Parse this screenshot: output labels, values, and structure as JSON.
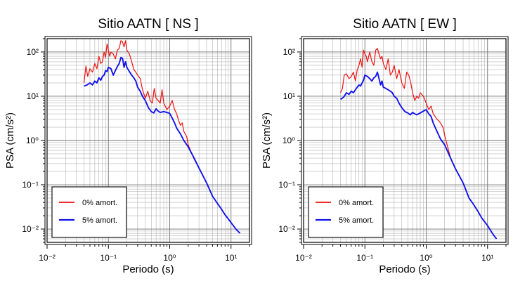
{
  "chart_data": [
    {
      "type": "line",
      "title": "Sitio AATN [ NS ]",
      "xlabel": "Periodo (s)",
      "ylabel": "PSA (cm/s²)",
      "xscale": "log",
      "yscale": "log",
      "xlim": [
        0.01,
        20
      ],
      "ylim": [
        0.005,
        200
      ],
      "grid": true,
      "legend_position": "bottom-left",
      "legend_label_fontsize": "small",
      "x_ticks": [
        "10⁻²",
        "10⁻¹",
        "10⁰",
        "10¹"
      ],
      "y_ticks": [
        "10⁻²",
        "10⁻¹",
        "10⁰",
        "10¹",
        "10²"
      ],
      "series": [
        {
          "name": "0% amort.",
          "color": "#ee1111",
          "x": [
            0.04,
            0.043,
            0.046,
            0.05,
            0.055,
            0.06,
            0.065,
            0.07,
            0.075,
            0.08,
            0.085,
            0.09,
            0.095,
            0.1,
            0.105,
            0.11,
            0.12,
            0.13,
            0.14,
            0.15,
            0.16,
            0.17,
            0.18,
            0.19,
            0.2,
            0.22,
            0.24,
            0.26,
            0.28,
            0.3,
            0.33,
            0.36,
            0.4,
            0.44,
            0.48,
            0.52,
            0.56,
            0.6,
            0.65,
            0.7,
            0.75,
            0.8,
            0.9,
            1.0,
            1.1,
            1.2,
            1.3,
            1.4,
            1.5,
            1.6,
            1.7,
            1.8,
            1.9,
            2.0,
            2.5,
            3,
            4,
            5,
            6,
            7,
            8,
            10,
            12,
            14
          ],
          "y": [
            20,
            48,
            28,
            42,
            35,
            55,
            42,
            80,
            55,
            60,
            100,
            75,
            150,
            110,
            80,
            100,
            90,
            70,
            110,
            120,
            180,
            170,
            130,
            180,
            110,
            90,
            60,
            40,
            35,
            30,
            25,
            14,
            9,
            13,
            8,
            7,
            15,
            9,
            8,
            7,
            14,
            7,
            5,
            6,
            8,
            5,
            4,
            2.8,
            2.2,
            2.5,
            1.6,
            1.4,
            1.2,
            0.8,
            0.38,
            0.24,
            0.11,
            0.055,
            0.038,
            0.028,
            0.021,
            0.014,
            0.01,
            0.008
          ]
        },
        {
          "name": "5% amort.",
          "color": "#1111ee",
          "x": [
            0.04,
            0.045,
            0.05,
            0.055,
            0.06,
            0.065,
            0.07,
            0.075,
            0.08,
            0.085,
            0.09,
            0.095,
            0.1,
            0.11,
            0.12,
            0.13,
            0.14,
            0.15,
            0.16,
            0.17,
            0.18,
            0.19,
            0.2,
            0.22,
            0.24,
            0.26,
            0.28,
            0.3,
            0.33,
            0.36,
            0.4,
            0.45,
            0.5,
            0.55,
            0.6,
            0.65,
            0.7,
            0.8,
            0.9,
            1.0,
            1.1,
            1.2,
            1.3,
            1.5,
            1.7,
            2.0,
            2.5,
            3,
            4,
            5,
            6,
            7,
            8,
            10,
            12,
            14
          ],
          "y": [
            17,
            18,
            20,
            18,
            22,
            20,
            26,
            23,
            28,
            30,
            38,
            36,
            45,
            42,
            30,
            38,
            47,
            55,
            75,
            72,
            45,
            60,
            45,
            36,
            30,
            26,
            22,
            16,
            13,
            10,
            8,
            5.5,
            4.5,
            4.2,
            5.2,
            4.6,
            4.3,
            4.5,
            4.3,
            4.1,
            3.2,
            2.5,
            1.9,
            1.4,
            1.0,
            0.72,
            0.4,
            0.24,
            0.11,
            0.055,
            0.038,
            0.028,
            0.021,
            0.014,
            0.01,
            0.008
          ]
        }
      ]
    },
    {
      "type": "line",
      "title": "Sitio AATN [ EW ]",
      "xlabel": "Periodo (s)",
      "ylabel": "PSA (cm/s²)",
      "xscale": "log",
      "yscale": "log",
      "xlim": [
        0.01,
        20
      ],
      "ylim": [
        0.005,
        200
      ],
      "grid": true,
      "legend_position": "bottom-left",
      "legend_label_fontsize": "small",
      "x_ticks": [
        "10⁻²",
        "10⁻¹",
        "10⁰",
        "10¹"
      ],
      "y_ticks": [
        "10⁻²",
        "10⁻¹",
        "10⁰",
        "10¹",
        "10²"
      ],
      "series": [
        {
          "name": "0% amort.",
          "color": "#ee1111",
          "x": [
            0.04,
            0.043,
            0.046,
            0.05,
            0.055,
            0.06,
            0.065,
            0.07,
            0.075,
            0.08,
            0.085,
            0.09,
            0.095,
            0.1,
            0.105,
            0.11,
            0.12,
            0.13,
            0.14,
            0.15,
            0.16,
            0.17,
            0.18,
            0.19,
            0.2,
            0.22,
            0.24,
            0.26,
            0.28,
            0.3,
            0.33,
            0.36,
            0.4,
            0.44,
            0.48,
            0.52,
            0.56,
            0.6,
            0.65,
            0.7,
            0.75,
            0.8,
            0.9,
            1.0,
            1.1,
            1.2,
            1.3,
            1.4,
            1.5,
            1.6,
            1.7,
            1.8,
            1.9,
            2.0,
            2.5,
            3,
            4,
            5,
            6,
            7,
            8,
            10,
            12,
            14
          ],
          "y": [
            12,
            15,
            30,
            32,
            25,
            28,
            35,
            22,
            40,
            50,
            70,
            45,
            110,
            90,
            80,
            60,
            100,
            60,
            50,
            110,
            120,
            90,
            70,
            80,
            55,
            40,
            70,
            30,
            35,
            50,
            25,
            40,
            20,
            15,
            35,
            30,
            20,
            12,
            8,
            10,
            9,
            12,
            10,
            7,
            5,
            6,
            4,
            3.5,
            3,
            2.8,
            2.5,
            2.2,
            1.9,
            1.3,
            0.4,
            0.23,
            0.11,
            0.05,
            0.035,
            0.025,
            0.018,
            0.012,
            0.008,
            0.006
          ]
        },
        {
          "name": "5% amort.",
          "color": "#1111ee",
          "x": [
            0.04,
            0.045,
            0.05,
            0.055,
            0.06,
            0.065,
            0.07,
            0.075,
            0.08,
            0.085,
            0.09,
            0.095,
            0.1,
            0.11,
            0.12,
            0.13,
            0.14,
            0.15,
            0.16,
            0.17,
            0.18,
            0.19,
            0.2,
            0.22,
            0.24,
            0.26,
            0.28,
            0.3,
            0.33,
            0.36,
            0.4,
            0.45,
            0.5,
            0.55,
            0.6,
            0.65,
            0.7,
            0.8,
            0.9,
            1.0,
            1.1,
            1.2,
            1.3,
            1.5,
            1.7,
            2.0,
            2.5,
            3,
            4,
            5,
            6,
            7,
            8,
            10,
            12,
            14
          ],
          "y": [
            8.5,
            9.5,
            12,
            11,
            13,
            12,
            14,
            16,
            18,
            17,
            20,
            23,
            30,
            28,
            25,
            22,
            26,
            28,
            35,
            25,
            18,
            22,
            16,
            15,
            14,
            13,
            12,
            10,
            9,
            7,
            5.5,
            4.5,
            4.2,
            3.8,
            4.3,
            4.0,
            3.8,
            4.2,
            4.6,
            5.0,
            4.0,
            3.5,
            2.5,
            1.6,
            1.1,
            0.8,
            0.4,
            0.23,
            0.11,
            0.05,
            0.035,
            0.025,
            0.018,
            0.012,
            0.008,
            0.006
          ]
        }
      ]
    }
  ]
}
